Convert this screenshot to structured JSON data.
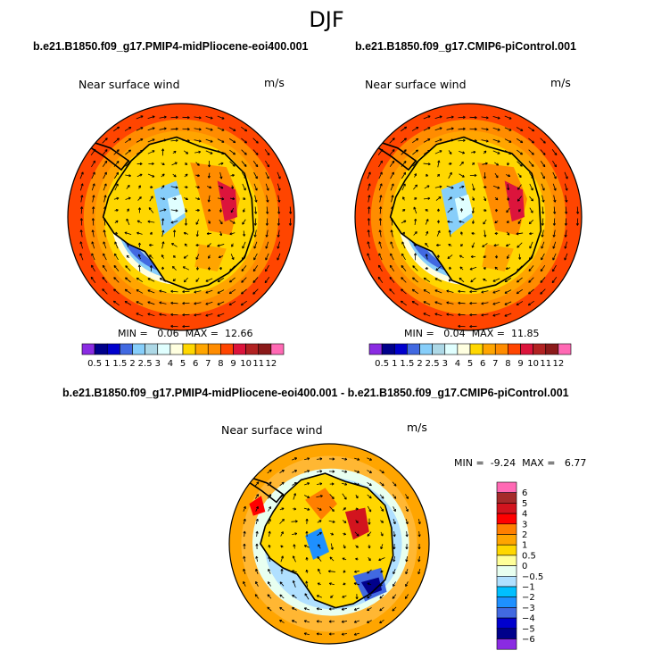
{
  "page_title": "DJF",
  "panels": [
    {
      "case": "b.e21.B1850.f09_g17.PMIP4-midPliocene-eoi400.001",
      "variable": "Near surface wind",
      "units": "m/s",
      "min_label": "MIN =",
      "min": "0.06",
      "max_label": "MAX =",
      "max": "12.66"
    },
    {
      "case": "b.e21.B1850.f09_g17.CMIP6-piControl.001",
      "variable": "Near surface wind",
      "units": "m/s",
      "min_label": "MIN =",
      "min": "0.04",
      "max_label": "MAX =",
      "max": "11.85"
    },
    {
      "case": "b.e21.B1850.f09_g17.PMIP4-midPliocene-eoi400.001 - b.e21.B1850.f09_g17.CMIP6-piControl.001",
      "variable": "Near surface wind",
      "units": "m/s",
      "min_label": "MIN =",
      "min": "-9.24",
      "max_label": "MAX =",
      "max": "6.77"
    }
  ],
  "colorbars": {
    "absolute": {
      "labels": [
        "0.5",
        "1",
        "1.5",
        "2",
        "2.5",
        "3",
        "4",
        "5",
        "6",
        "7",
        "8",
        "9",
        "10",
        "11",
        "12"
      ],
      "colors": [
        "#8a2be2",
        "#00008b",
        "#0000cd",
        "#4169e1",
        "#87cefa",
        "#add8e6",
        "#e0ffff",
        "#ffffe0",
        "#ffd700",
        "#ffa500",
        "#ff8c00",
        "#ff4500",
        "#dc143c",
        "#b22222",
        "#8b1a1a",
        "#ff69b4"
      ]
    },
    "difference": {
      "labels": [
        "6",
        "5",
        "4",
        "3",
        "2",
        "1",
        "0.5",
        "0",
        "−0.5",
        "−1",
        "−2",
        "−3",
        "−4",
        "−5",
        "−6"
      ],
      "colors": [
        "#ff69b4",
        "#a52a2a",
        "#d2141e",
        "#ff0000",
        "#ff7f00",
        "#ffa500",
        "#ffd700",
        "#ffff99",
        "#e8fff0",
        "#b0e0ff",
        "#00bfff",
        "#1e90ff",
        "#4169e1",
        "#0000cd",
        "#00008b",
        "#8a2be2"
      ]
    }
  },
  "chart_data": [
    {
      "type": "heatmap",
      "title": "b.e21.B1850.f09_g17.PMIP4-midPliocene-eoi400.001",
      "subtitle": "Near surface wind",
      "units": "m/s",
      "season": "DJF",
      "projection": "south polar stereographic",
      "min": 0.06,
      "max": 12.66,
      "levels": [
        0.5,
        1,
        1.5,
        2,
        2.5,
        3,
        4,
        5,
        6,
        7,
        8,
        9,
        10,
        11,
        12
      ],
      "overlay": "wind vectors"
    },
    {
      "type": "heatmap",
      "title": "b.e21.B1850.f09_g17.CMIP6-piControl.001",
      "subtitle": "Near surface wind",
      "units": "m/s",
      "season": "DJF",
      "projection": "south polar stereographic",
      "min": 0.04,
      "max": 11.85,
      "levels": [
        0.5,
        1,
        1.5,
        2,
        2.5,
        3,
        4,
        5,
        6,
        7,
        8,
        9,
        10,
        11,
        12
      ],
      "overlay": "wind vectors"
    },
    {
      "type": "heatmap",
      "title": "b.e21.B1850.f09_g17.PMIP4-midPliocene-eoi400.001 - b.e21.B1850.f09_g17.CMIP6-piControl.001",
      "subtitle": "Near surface wind",
      "units": "m/s",
      "season": "DJF",
      "projection": "south polar stereographic",
      "min": -9.24,
      "max": 6.77,
      "levels": [
        -6,
        -5,
        -4,
        -3,
        -2,
        -1,
        -0.5,
        0,
        0.5,
        1,
        2,
        3,
        4,
        5,
        6
      ],
      "overlay": "wind vectors"
    }
  ]
}
